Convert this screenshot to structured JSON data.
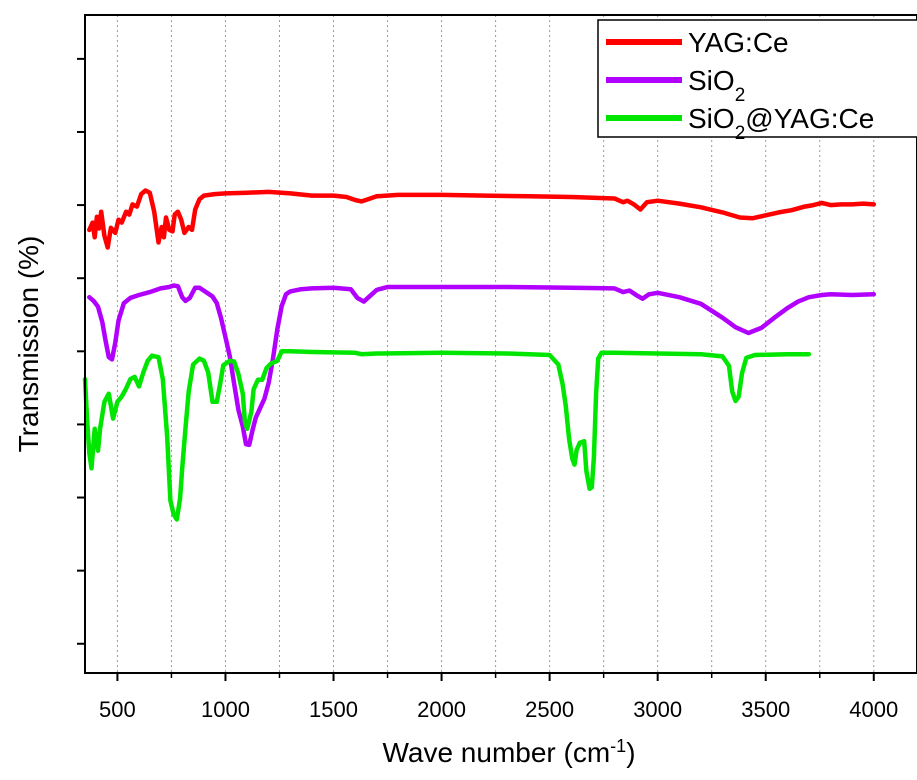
{
  "chart_data": {
    "type": "line",
    "xlabel": "Wave number (cm",
    "xlabel_superscript": "-1",
    "xlabel_suffix": ")",
    "ylabel": "Transmission (%)",
    "xlim": [
      350,
      4200
    ],
    "ylim": [
      0,
      9
    ],
    "x_ticks": [
      500,
      1000,
      1500,
      2000,
      2500,
      3000,
      3500,
      4000
    ],
    "x_tick_labels": [
      "500",
      "1000",
      "1500",
      "2000",
      "2500",
      "3000",
      "3500",
      "4000"
    ],
    "x_minor_ticks": [
      750,
      1250,
      1750,
      2250,
      2750,
      3250,
      3750
    ],
    "y_ticks": [
      0.4,
      1.4,
      2.4,
      3.4,
      4.4,
      5.4,
      6.4,
      7.4,
      8.4
    ],
    "y_tick_labels_shown": false,
    "grid": "vertical dotted at major and minor x ticks",
    "legend_position": "top-right",
    "series": [
      {
        "name": "YAG:Ce",
        "color": "#ff0000",
        "points": [
          [
            370,
            6.06
          ],
          [
            385,
            6.16
          ],
          [
            395,
            5.96
          ],
          [
            405,
            6.24
          ],
          [
            415,
            6.08
          ],
          [
            425,
            6.31
          ],
          [
            440,
            5.98
          ],
          [
            455,
            5.82
          ],
          [
            470,
            6.09
          ],
          [
            490,
            6.02
          ],
          [
            505,
            6.2
          ],
          [
            520,
            6.16
          ],
          [
            540,
            6.31
          ],
          [
            555,
            6.27
          ],
          [
            570,
            6.41
          ],
          [
            590,
            6.38
          ],
          [
            610,
            6.55
          ],
          [
            630,
            6.6
          ],
          [
            650,
            6.57
          ],
          [
            670,
            6.31
          ],
          [
            690,
            5.89
          ],
          [
            705,
            6.1
          ],
          [
            715,
            5.96
          ],
          [
            725,
            6.23
          ],
          [
            740,
            6.06
          ],
          [
            755,
            6.04
          ],
          [
            765,
            6.27
          ],
          [
            780,
            6.31
          ],
          [
            795,
            6.2
          ],
          [
            810,
            6.02
          ],
          [
            830,
            6.1
          ],
          [
            845,
            6.06
          ],
          [
            860,
            6.34
          ],
          [
            880,
            6.48
          ],
          [
            900,
            6.53
          ],
          [
            950,
            6.55
          ],
          [
            1000,
            6.56
          ],
          [
            1100,
            6.57
          ],
          [
            1200,
            6.58
          ],
          [
            1300,
            6.56
          ],
          [
            1400,
            6.53
          ],
          [
            1500,
            6.53
          ],
          [
            1560,
            6.51
          ],
          [
            1600,
            6.47
          ],
          [
            1630,
            6.45
          ],
          [
            1660,
            6.48
          ],
          [
            1700,
            6.52
          ],
          [
            1800,
            6.54
          ],
          [
            2000,
            6.54
          ],
          [
            2200,
            6.53
          ],
          [
            2400,
            6.52
          ],
          [
            2600,
            6.51
          ],
          [
            2800,
            6.49
          ],
          [
            2840,
            6.44
          ],
          [
            2860,
            6.46
          ],
          [
            2890,
            6.41
          ],
          [
            2920,
            6.34
          ],
          [
            2950,
            6.44
          ],
          [
            3000,
            6.46
          ],
          [
            3100,
            6.42
          ],
          [
            3200,
            6.37
          ],
          [
            3300,
            6.3
          ],
          [
            3380,
            6.23
          ],
          [
            3440,
            6.22
          ],
          [
            3500,
            6.26
          ],
          [
            3560,
            6.3
          ],
          [
            3620,
            6.33
          ],
          [
            3680,
            6.38
          ],
          [
            3720,
            6.4
          ],
          [
            3760,
            6.43
          ],
          [
            3800,
            6.4
          ],
          [
            3850,
            6.41
          ],
          [
            3900,
            6.41
          ],
          [
            3950,
            6.42
          ],
          [
            4000,
            6.41
          ]
        ]
      },
      {
        "name": "SiO2",
        "name_base": "SiO",
        "name_subscript": "2",
        "color": "#b200ff",
        "points": [
          [
            370,
            5.14
          ],
          [
            390,
            5.09
          ],
          [
            410,
            5.01
          ],
          [
            430,
            4.8
          ],
          [
            445,
            4.55
          ],
          [
            460,
            4.32
          ],
          [
            475,
            4.29
          ],
          [
            490,
            4.52
          ],
          [
            505,
            4.82
          ],
          [
            530,
            5.06
          ],
          [
            560,
            5.13
          ],
          [
            600,
            5.17
          ],
          [
            650,
            5.21
          ],
          [
            700,
            5.26
          ],
          [
            740,
            5.28
          ],
          [
            760,
            5.3
          ],
          [
            780,
            5.29
          ],
          [
            800,
            5.14
          ],
          [
            815,
            5.09
          ],
          [
            835,
            5.13
          ],
          [
            860,
            5.27
          ],
          [
            880,
            5.27
          ],
          [
            910,
            5.21
          ],
          [
            940,
            5.15
          ],
          [
            960,
            5.06
          ],
          [
            980,
            4.85
          ],
          [
            1000,
            4.59
          ],
          [
            1020,
            4.33
          ],
          [
            1040,
            3.96
          ],
          [
            1060,
            3.6
          ],
          [
            1080,
            3.37
          ],
          [
            1095,
            3.13
          ],
          [
            1110,
            3.12
          ],
          [
            1125,
            3.32
          ],
          [
            1140,
            3.49
          ],
          [
            1160,
            3.62
          ],
          [
            1180,
            3.75
          ],
          [
            1200,
            3.97
          ],
          [
            1220,
            4.3
          ],
          [
            1240,
            4.7
          ],
          [
            1260,
            5.02
          ],
          [
            1280,
            5.18
          ],
          [
            1300,
            5.22
          ],
          [
            1350,
            5.25
          ],
          [
            1400,
            5.26
          ],
          [
            1500,
            5.27
          ],
          [
            1580,
            5.25
          ],
          [
            1610,
            5.13
          ],
          [
            1640,
            5.08
          ],
          [
            1670,
            5.16
          ],
          [
            1700,
            5.24
          ],
          [
            1750,
            5.28
          ],
          [
            2000,
            5.28
          ],
          [
            2300,
            5.28
          ],
          [
            2600,
            5.27
          ],
          [
            2800,
            5.26
          ],
          [
            2840,
            5.21
          ],
          [
            2870,
            5.23
          ],
          [
            2900,
            5.17
          ],
          [
            2930,
            5.12
          ],
          [
            2960,
            5.18
          ],
          [
            3000,
            5.2
          ],
          [
            3100,
            5.14
          ],
          [
            3200,
            5.05
          ],
          [
            3300,
            4.86
          ],
          [
            3360,
            4.73
          ],
          [
            3420,
            4.65
          ],
          [
            3480,
            4.72
          ],
          [
            3540,
            4.86
          ],
          [
            3600,
            4.99
          ],
          [
            3650,
            5.08
          ],
          [
            3700,
            5.14
          ],
          [
            3760,
            5.17
          ],
          [
            3800,
            5.18
          ],
          [
            3900,
            5.17
          ],
          [
            4000,
            5.18
          ]
        ]
      },
      {
        "name": "SiO2@YAG:Ce",
        "name_base": "SiO",
        "name_subscript": "2",
        "name_suffix": "@YAG:Ce",
        "color": "#00e600",
        "points": [
          [
            350,
            4.02
          ],
          [
            360,
            3.44
          ],
          [
            370,
            3.01
          ],
          [
            380,
            2.8
          ],
          [
            395,
            3.34
          ],
          [
            410,
            3.04
          ],
          [
            420,
            3.34
          ],
          [
            440,
            3.71
          ],
          [
            460,
            3.82
          ],
          [
            480,
            3.48
          ],
          [
            500,
            3.71
          ],
          [
            520,
            3.78
          ],
          [
            540,
            3.89
          ],
          [
            560,
            4.02
          ],
          [
            580,
            4.05
          ],
          [
            600,
            3.92
          ],
          [
            620,
            4.11
          ],
          [
            640,
            4.27
          ],
          [
            660,
            4.34
          ],
          [
            690,
            4.32
          ],
          [
            710,
            4.02
          ],
          [
            730,
            3.25
          ],
          [
            745,
            2.36
          ],
          [
            760,
            2.17
          ],
          [
            775,
            2.1
          ],
          [
            790,
            2.39
          ],
          [
            800,
            2.8
          ],
          [
            815,
            3.35
          ],
          [
            830,
            3.85
          ],
          [
            850,
            4.22
          ],
          [
            880,
            4.3
          ],
          [
            900,
            4.27
          ],
          [
            920,
            4.11
          ],
          [
            940,
            3.71
          ],
          [
            960,
            3.71
          ],
          [
            975,
            3.95
          ],
          [
            990,
            4.21
          ],
          [
            1020,
            4.27
          ],
          [
            1040,
            4.26
          ],
          [
            1060,
            4.09
          ],
          [
            1080,
            3.82
          ],
          [
            1090,
            3.44
          ],
          [
            1100,
            3.34
          ],
          [
            1110,
            3.45
          ],
          [
            1120,
            3.58
          ],
          [
            1130,
            3.88
          ],
          [
            1150,
            4.01
          ],
          [
            1170,
            4.01
          ],
          [
            1190,
            4.17
          ],
          [
            1210,
            4.23
          ],
          [
            1240,
            4.27
          ],
          [
            1260,
            4.4
          ],
          [
            1300,
            4.4
          ],
          [
            1400,
            4.39
          ],
          [
            1600,
            4.38
          ],
          [
            1630,
            4.36
          ],
          [
            1700,
            4.37
          ],
          [
            2000,
            4.38
          ],
          [
            2300,
            4.37
          ],
          [
            2500,
            4.35
          ],
          [
            2540,
            4.22
          ],
          [
            2560,
            3.95
          ],
          [
            2575,
            3.65
          ],
          [
            2590,
            3.2
          ],
          [
            2605,
            2.93
          ],
          [
            2615,
            2.85
          ],
          [
            2625,
            3.05
          ],
          [
            2640,
            3.15
          ],
          [
            2660,
            3.17
          ],
          [
            2670,
            2.76
          ],
          [
            2685,
            2.52
          ],
          [
            2695,
            2.54
          ],
          [
            2705,
            2.95
          ],
          [
            2715,
            3.82
          ],
          [
            2725,
            4.3
          ],
          [
            2740,
            4.38
          ],
          [
            2800,
            4.38
          ],
          [
            3000,
            4.37
          ],
          [
            3200,
            4.36
          ],
          [
            3300,
            4.33
          ],
          [
            3330,
            4.2
          ],
          [
            3345,
            3.85
          ],
          [
            3360,
            3.72
          ],
          [
            3375,
            3.78
          ],
          [
            3390,
            4.1
          ],
          [
            3410,
            4.31
          ],
          [
            3450,
            4.35
          ],
          [
            3600,
            4.36
          ],
          [
            3700,
            4.36
          ]
        ]
      }
    ]
  }
}
